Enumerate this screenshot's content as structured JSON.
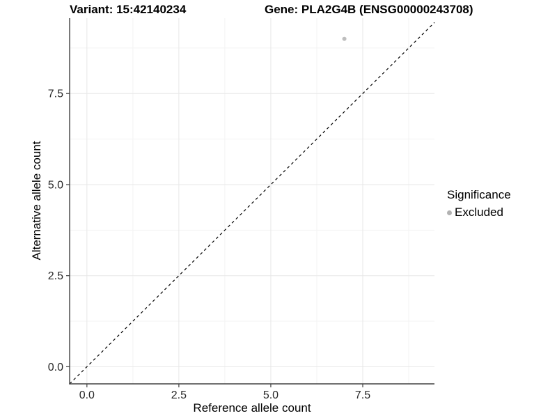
{
  "figure": {
    "title_left": "Variant: 15:42140234",
    "title_right": "Gene: PLA2G4B (ENSG00000243708)"
  },
  "chart_data": {
    "type": "scatter",
    "title": "Variant: 15:42140234 / Gene: PLA2G4B (ENSG00000243708)",
    "xlabel": "Reference allele count",
    "ylabel": "Alternative allele count",
    "xlim": [
      -0.47,
      9.45
    ],
    "ylim": [
      -0.47,
      9.57
    ],
    "x_ticks": {
      "values": [
        0,
        2.5,
        5,
        7.5
      ],
      "labels": [
        "0.0",
        "2.5",
        "5.0",
        "7.5"
      ]
    },
    "y_ticks": {
      "values": [
        0,
        2.5,
        5,
        7.5
      ],
      "labels": [
        "0.0",
        "2.5",
        "5.0",
        "7.5"
      ]
    },
    "x_minor_ticks": [
      1.25,
      3.75,
      6.25,
      8.75
    ],
    "y_minor_ticks": [
      1.25,
      3.75,
      6.25,
      8.75
    ],
    "grid": {
      "major_color": "#e7e7e7",
      "minor_color": "#f3f3f3",
      "background": "#ffffff"
    },
    "axis_color": "#404040",
    "tick_label_color": "#262626",
    "identity_line": {
      "slope": 1,
      "intercept": 0,
      "style": "dashed",
      "color": "#000000"
    },
    "series": [
      {
        "name": "Excluded",
        "color": "#bebebe",
        "points": [
          {
            "x": 7,
            "y": 9
          }
        ]
      }
    ],
    "legend": {
      "title": "Significance",
      "position": "right",
      "items": [
        {
          "label": "Excluded",
          "color": "#b2b2b2"
        }
      ]
    }
  }
}
